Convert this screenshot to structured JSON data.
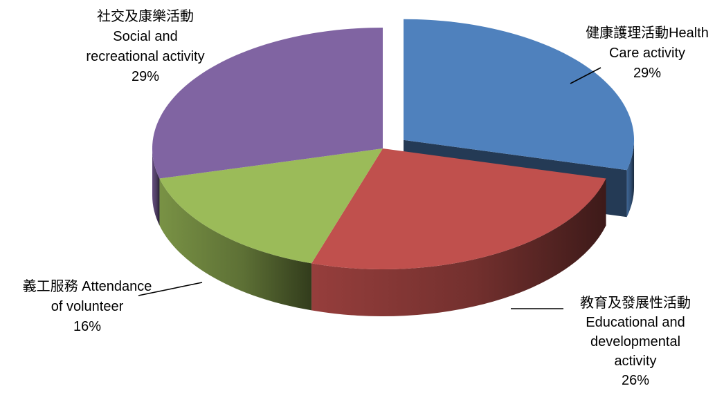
{
  "chart_data": {
    "type": "pie",
    "title": "",
    "style": "3d-exploded",
    "categories": [
      "健康護理活動Health Care activity",
      "教育及發展性活動 Educational and developmental activity",
      "義工服務 Attendance of volunteer",
      "社交及康樂活動 Social and recreational activity"
    ],
    "values": [
      29,
      26,
      16,
      29
    ],
    "colors": [
      "#4f81bd",
      "#c0504d",
      "#9bbb59",
      "#8064a2"
    ],
    "exploded": [
      true,
      false,
      false,
      false
    ],
    "legend": "none",
    "data_labels": [
      {
        "lines": [
          "健康護理活動Health",
          "Care activity"
        ],
        "percent": "29%"
      },
      {
        "lines": [
          "教育及發展性活動",
          "Educational and",
          "developmental",
          "activity"
        ],
        "percent": "26%"
      },
      {
        "lines": [
          "義工服務 Attendance",
          "of volunteer"
        ],
        "percent": "16%"
      },
      {
        "lines": [
          "社交及康樂活動",
          "Social and",
          "recreational activity"
        ],
        "percent": "29%"
      }
    ]
  }
}
